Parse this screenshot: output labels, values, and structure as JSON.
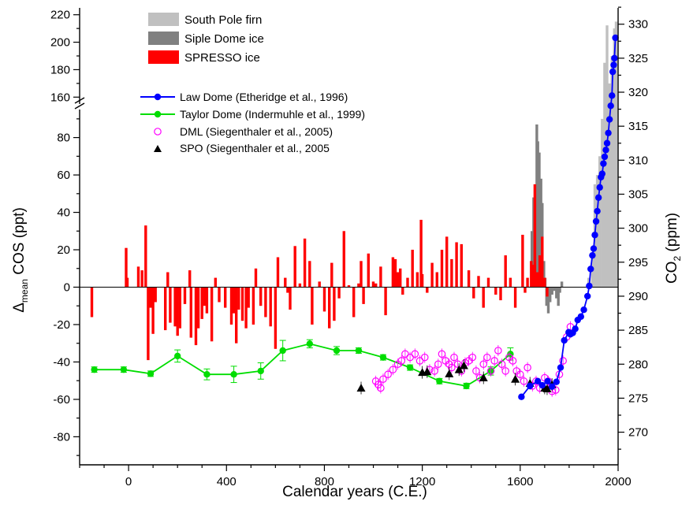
{
  "chart_data": {
    "type": "bar+line+scatter",
    "xlabel": "Calendar years (C.E.)",
    "ylabel_left": {
      "prefix": "Δ",
      "sub": "mean",
      "suffix": " COS (ppt)"
    },
    "ylabel_right": {
      "prefix": "CO",
      "sub": "2",
      "suffix": " (ppm)"
    },
    "x_range": [
      -200,
      2000
    ],
    "x_ticks": [
      0,
      400,
      800,
      1200,
      1600,
      2000
    ],
    "y_left_lower_range": [
      -95,
      95
    ],
    "y_left_lower_ticks": [
      -80,
      -60,
      -40,
      -20,
      0,
      20,
      40,
      60,
      80
    ],
    "y_left_upper_range": [
      155,
      225
    ],
    "y_left_upper_ticks": [
      160,
      180,
      200,
      220
    ],
    "y_right_range": [
      265.2,
      332.4
    ],
    "y_right_ticks": [
      270,
      275,
      280,
      285,
      290,
      295,
      300,
      305,
      310,
      315,
      320,
      325,
      330
    ],
    "bar_legend": [
      {
        "name": "South Pole firn",
        "color": "#c0c0c0"
      },
      {
        "name": "Siple Dome ice",
        "color": "#808080"
      },
      {
        "name": "SPRESSO ice",
        "color": "#ff0000"
      }
    ],
    "line_legend": [
      {
        "name": "Law Dome (Etheridge et al., 1996)",
        "color": "#0000ff"
      },
      {
        "name": "Taylor Dome (Indermuhle et al., 1999)",
        "color": "#00dd00"
      },
      {
        "name": "DML (Siegenthaler et al., 2005)",
        "color": "#ff00ff"
      },
      {
        "name": "SPO (Siegenthaler et al., 2005",
        "color": "#000000"
      }
    ],
    "south_pole_firn": {
      "x": [
        1880,
        1895,
        1905,
        1915,
        1925,
        1935,
        1945,
        1955,
        1965,
        1975,
        1985,
        1992
      ],
      "values": [
        5,
        18,
        55,
        60,
        70,
        90,
        120,
        140,
        170,
        190,
        210,
        215
      ]
    },
    "siple_dome": {
      "x": [
        1648,
        1655,
        1662,
        1668,
        1672,
        1678,
        1685,
        1690,
        1697,
        1702,
        1708,
        1715,
        1722,
        1730,
        1740,
        1748,
        1756,
        1762,
        1770
      ],
      "values": [
        30,
        48,
        42,
        87,
        78,
        72,
        58,
        45,
        14,
        5,
        -10,
        -14,
        -8,
        -4,
        -2,
        -6,
        -10,
        -3,
        3
      ]
    },
    "spresso": {
      "x": [
        -150,
        -10,
        -5,
        40,
        55,
        70,
        80,
        90,
        100,
        110,
        150,
        160,
        170,
        190,
        200,
        205,
        210,
        230,
        250,
        255,
        275,
        285,
        300,
        310,
        320,
        340,
        355,
        370,
        395,
        420,
        430,
        440,
        450,
        465,
        480,
        490,
        510,
        520,
        540,
        560,
        580,
        600,
        610,
        640,
        650,
        660,
        680,
        700,
        720,
        740,
        750,
        780,
        800,
        820,
        830,
        840,
        860,
        880,
        900,
        920,
        940,
        950,
        960,
        980,
        1000,
        1010,
        1030,
        1050,
        1080,
        1090,
        1100,
        1110,
        1120,
        1140,
        1160,
        1180,
        1195,
        1200,
        1220,
        1240,
        1260,
        1280,
        1300,
        1320,
        1340,
        1360,
        1390,
        1410,
        1430,
        1450,
        1470,
        1500,
        1520,
        1540,
        1560,
        1580,
        1610,
        1620,
        1630,
        1645,
        1655,
        1660,
        1670,
        1680,
        1690,
        1700,
        1710
      ],
      "values": [
        -16,
        21,
        5,
        11,
        9,
        33,
        -39,
        -11,
        -25,
        -8,
        -23,
        8,
        -19,
        -21,
        -26,
        -5,
        -22,
        -9,
        9,
        -27,
        -31,
        -22,
        -17,
        -10,
        -14,
        -29,
        5,
        -8,
        -11,
        -20,
        -14,
        -30,
        -12,
        -18,
        -22,
        -11,
        -20,
        10,
        -10,
        -16,
        -21,
        -33,
        16,
        5,
        -3,
        -12,
        22,
        2,
        26,
        14,
        -20,
        3,
        -13,
        -22,
        13,
        -18,
        -6,
        30,
        1,
        -16,
        2,
        14,
        -9,
        18,
        3,
        2,
        11,
        -15,
        16,
        15,
        8,
        10,
        -4,
        5,
        20,
        8,
        36,
        7,
        -3,
        13,
        8,
        20,
        27,
        15,
        24,
        23,
        9,
        -6,
        6,
        -11,
        5,
        -4,
        -7,
        17,
        5,
        -11,
        28,
        -3,
        5,
        14,
        12,
        55,
        8,
        17,
        27,
        5,
        -5
      ]
    },
    "law_dome": {
      "x": [
        1605,
        1640,
        1672,
        1690,
        1712,
        1730,
        1748,
        1765,
        1780,
        1798,
        1805,
        1815,
        1825,
        1835,
        1848,
        1860,
        1875,
        1882,
        1888,
        1895,
        1900,
        1905,
        1910,
        1915,
        1920,
        1925,
        1930,
        1935,
        1940,
        1945,
        1950,
        1955,
        1960,
        1965,
        1970,
        1975,
        1978,
        1982,
        1985,
        1989
      ],
      "values": [
        275.2,
        276.8,
        277.5,
        276.9,
        277.5,
        276.7,
        277.4,
        279.5,
        283.5,
        284.7,
        284.4,
        284.6,
        285.2,
        286.5,
        287.0,
        288.0,
        290.0,
        291.5,
        294.0,
        296.0,
        297.0,
        299.0,
        301.0,
        302.5,
        304.5,
        306.0,
        307.5,
        308.0,
        309.5,
        310.5,
        311.5,
        312.5,
        314.0,
        316.0,
        318.0,
        319.5,
        323.0,
        324.0,
        325.0,
        328.0
      ]
    },
    "taylor_dome": {
      "x": [
        -140,
        -20,
        90,
        200,
        320,
        430,
        540,
        630,
        740,
        850,
        940,
        1040,
        1150,
        1270,
        1380,
        1480,
        1560
      ],
      "values": [
        279.2,
        279.2,
        278.6,
        281.2,
        278.5,
        278.5,
        279.0,
        282.0,
        283.0,
        282.0,
        282.0,
        281.0,
        279.5,
        277.5,
        276.8,
        279.0,
        281.5
      ],
      "errors": [
        0.4,
        0.4,
        0.4,
        0.9,
        0.8,
        1.2,
        1.2,
        1.5,
        0.6,
        0.6,
        0.4,
        0.4,
        0.4,
        0.4,
        0.4,
        0.6,
        0.9
      ]
    },
    "dml": {
      "x": [
        1010,
        1020,
        1030,
        1040,
        1060,
        1080,
        1100,
        1115,
        1130,
        1150,
        1170,
        1190,
        1210,
        1230,
        1250,
        1265,
        1280,
        1295,
        1310,
        1320,
        1330,
        1345,
        1360,
        1375,
        1390,
        1405,
        1420,
        1435,
        1450,
        1465,
        1480,
        1495,
        1510,
        1525,
        1540,
        1555,
        1570,
        1585,
        1600,
        1615,
        1630,
        1650,
        1665,
        1680,
        1700,
        1715,
        1730,
        1745,
        1760,
        1775,
        1790,
        1805
      ],
      "values": [
        277.5,
        277.0,
        276.5,
        277.8,
        278.5,
        279.2,
        280.0,
        280.5,
        281.5,
        281.0,
        281.5,
        280.5,
        281.0,
        279.2,
        279.0,
        280.0,
        281.5,
        280.5,
        280.0,
        279.5,
        281.0,
        280.0,
        279.0,
        280.2,
        280.5,
        281.0,
        279.0,
        278.0,
        280.0,
        281.0,
        279.0,
        280.5,
        282.0,
        280.0,
        279.0,
        281.0,
        280.5,
        279.0,
        278.5,
        277.5,
        279.5,
        276.8,
        277.5,
        276.5,
        278.0,
        277.5,
        276.0,
        276.2,
        278.5,
        280.5,
        284.0,
        285.5
      ]
    },
    "spo": {
      "x": [
        950,
        1200,
        1220,
        1310,
        1350,
        1370,
        1450,
        1580,
        1640,
        1700,
        1710,
        1730
      ],
      "values": [
        276.5,
        278.8,
        278.9,
        278.6,
        279.2,
        279.8,
        278.0,
        277.8,
        277.2,
        276.5,
        276.4,
        277.0
      ]
    }
  }
}
